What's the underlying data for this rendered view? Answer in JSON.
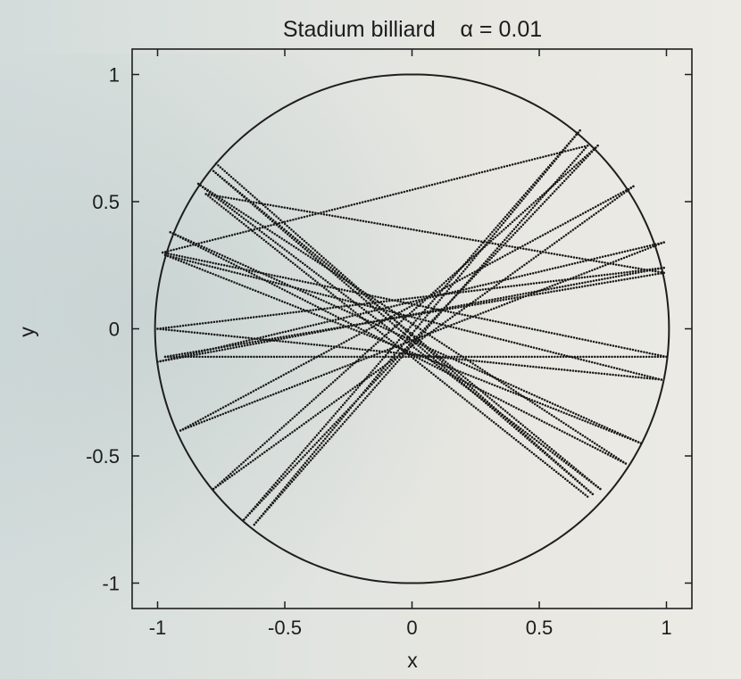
{
  "chart_data": {
    "type": "line",
    "title": "Stadium billiard    α = 0.01",
    "xlabel": "x",
    "ylabel": "y",
    "xlim": [
      -1.1,
      1.1
    ],
    "ylim": [
      -1.1,
      1.1
    ],
    "xticks": [
      -1,
      -0.5,
      0,
      0.5,
      1
    ],
    "yticks": [
      -1,
      -0.5,
      0,
      0.5,
      1
    ],
    "xtick_labels": [
      "-1",
      "-0.5",
      "0",
      "0.5",
      "1"
    ],
    "ytick_labels": [
      "-1",
      "-0.5",
      "0",
      "0.5",
      "1"
    ],
    "grid": false,
    "legend": "none",
    "boundary": {
      "shape": "stadium",
      "alpha": 0.01,
      "radius": 1.0
    },
    "trajectory_segments": [
      {
        "x": [
          -0.77,
          0.71
        ],
        "y": [
          0.65,
          -0.65
        ]
      },
      {
        "x": [
          0.71,
          -0.78
        ],
        "y": [
          -0.65,
          0.62
        ]
      },
      {
        "x": [
          -0.78,
          0.74
        ],
        "y": [
          0.62,
          -0.63
        ]
      },
      {
        "x": [
          0.74,
          -0.84
        ],
        "y": [
          -0.63,
          0.57
        ]
      },
      {
        "x": [
          -0.84,
          0.84
        ],
        "y": [
          0.57,
          -0.53
        ]
      },
      {
        "x": [
          0.84,
          -0.95
        ],
        "y": [
          -0.53,
          0.38
        ]
      },
      {
        "x": [
          -0.95,
          0.9
        ],
        "y": [
          0.38,
          -0.45
        ]
      },
      {
        "x": [
          0.9,
          -0.97
        ],
        "y": [
          -0.45,
          0.29
        ]
      },
      {
        "x": [
          -0.97,
          0.98
        ],
        "y": [
          0.29,
          -0.2
        ]
      },
      {
        "x": [
          0.98,
          -1.0
        ],
        "y": [
          -0.2,
          0.0
        ]
      },
      {
        "x": [
          -1.0,
          0.99
        ],
        "y": [
          0.0,
          0.24
        ]
      },
      {
        "x": [
          0.99,
          -1.0
        ],
        "y": [
          0.24,
          -0.13
        ]
      },
      {
        "x": [
          -1.0,
          0.99
        ],
        "y": [
          -0.13,
          0.34
        ]
      },
      {
        "x": [
          0.99,
          -0.91
        ],
        "y": [
          0.34,
          -0.4
        ]
      },
      {
        "x": [
          -0.91,
          0.87
        ],
        "y": [
          -0.4,
          0.56
        ]
      },
      {
        "x": [
          0.87,
          -0.78
        ],
        "y": [
          0.56,
          -0.63
        ]
      },
      {
        "x": [
          -0.78,
          0.73
        ],
        "y": [
          -0.63,
          0.72
        ]
      },
      {
        "x": [
          0.73,
          -0.66
        ],
        "y": [
          0.72,
          -0.75
        ]
      },
      {
        "x": [
          -0.66,
          0.66
        ],
        "y": [
          -0.75,
          0.78
        ]
      },
      {
        "x": [
          0.66,
          -0.62
        ],
        "y": [
          0.78,
          -0.77
        ]
      },
      {
        "x": [
          -0.62,
          0.69
        ],
        "y": [
          -0.77,
          0.72
        ]
      },
      {
        "x": [
          0.69,
          -0.98
        ],
        "y": [
          0.72,
          0.3
        ]
      },
      {
        "x": [
          -0.98,
          1.0
        ],
        "y": [
          0.3,
          -0.11
        ]
      },
      {
        "x": [
          1.0,
          -0.97
        ],
        "y": [
          -0.11,
          -0.11
        ]
      },
      {
        "x": [
          -0.97,
          0.99
        ],
        "y": [
          -0.11,
          0.22
        ]
      },
      {
        "x": [
          0.99,
          -0.81
        ],
        "y": [
          0.22,
          0.53
        ]
      },
      {
        "x": [
          -0.81,
          0.69
        ],
        "y": [
          0.53,
          -0.66
        ]
      }
    ]
  }
}
